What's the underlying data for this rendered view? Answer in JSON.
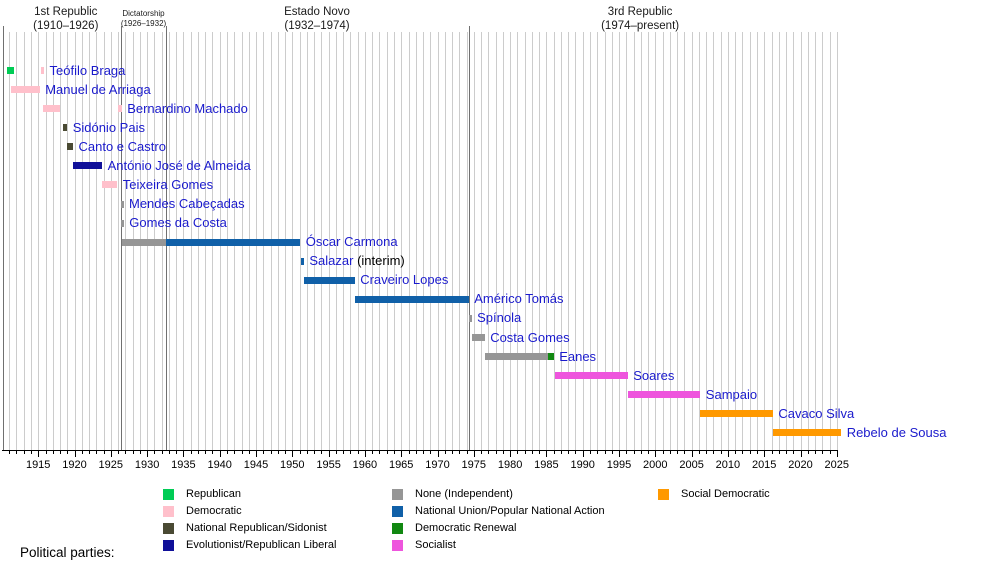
{
  "legend": {
    "title": "Political parties:",
    "columns": [
      [
        {
          "label": "Republican",
          "party": "republican"
        },
        {
          "label": "Democratic",
          "party": "democratic"
        },
        {
          "label": "National Republican/Sidonist",
          "party": "national_republican_sidonist"
        },
        {
          "label": "Evolutionist/Republican Liberal",
          "party": "evolutionist_republican_liberal"
        }
      ],
      [
        {
          "label": "None (Independent)",
          "party": "none_independent"
        },
        {
          "label": "National Union/Popular National Action",
          "party": "national_union"
        },
        {
          "label": "Democratic Renewal",
          "party": "democratic_renewal"
        },
        {
          "label": "Socialist",
          "party": "socialist"
        }
      ],
      [
        {
          "label": "Social Democratic",
          "party": "social_democratic"
        }
      ]
    ]
  },
  "colors": {
    "name_label": "#1A1ACC",
    "grid": "#CCCCCC",
    "period_line": "#707070",
    "axis": "#000000",
    "text": "#000000"
  },
  "chart_data": {
    "type": "timeline",
    "unit": "year",
    "x_axis": {
      "range": [
        1910,
        2026
      ],
      "minor_tick_interval": 1,
      "tick_years": [
        1915,
        1920,
        1925,
        1930,
        1935,
        1940,
        1945,
        1950,
        1955,
        1960,
        1965,
        1970,
        1975,
        1980,
        1985,
        1990,
        1995,
        2000,
        2005,
        2010,
        2015,
        2020,
        2025
      ]
    },
    "periods": [
      {
        "name": "1st Republic",
        "years_label": "(1910–1926)",
        "start": 1910.2,
        "end": 1926.45,
        "label_center_year": 1918.8,
        "small": false
      },
      {
        "name": "Dictatorship",
        "years_label": "(1926–1932)",
        "start": 1926.45,
        "end": 1932.6,
        "label_center_year": 1929.5,
        "small": true
      },
      {
        "name": "Estado Novo",
        "years_label": "(1932–1974)",
        "start": 1932.6,
        "end": 1974.3,
        "label_center_year": 1953.4,
        "small": false
      },
      {
        "name": "3rd Republic",
        "years_label": "(1974–present)",
        "start": 1974.3,
        "end": null,
        "label_center_year": 1997.9,
        "small": false
      }
    ],
    "party_colors": {
      "republican": "#00CC55",
      "democratic": "#FFC0CB",
      "national_republican_sidonist": "#4A4A33",
      "evolutionist_republican_liberal": "#101099",
      "none_independent": "#969696",
      "national_union": "#1060A8",
      "democratic_renewal": "#118811",
      "socialist": "#EE55DD",
      "social_democratic": "#FF9900"
    },
    "presidents": [
      {
        "name": "Teófilo Braga",
        "segments": [
          {
            "start": 1910.7,
            "end": 1911.6,
            "party": "republican"
          },
          {
            "start": 1915.35,
            "end": 1915.8,
            "party": "democratic"
          }
        ]
      },
      {
        "name": "Manuel de Arriaga",
        "segments": [
          {
            "start": 1911.2,
            "end": 1915.2,
            "party": "democratic"
          }
        ]
      },
      {
        "name": "Bernardino Machado",
        "segments": [
          {
            "start": 1915.6,
            "end": 1918.0,
            "party": "democratic"
          },
          {
            "start": 1926.0,
            "end": 1926.5,
            "party": "democratic"
          }
        ]
      },
      {
        "name": "Sidónio Pais",
        "segments": [
          {
            "start": 1918.4,
            "end": 1919.0,
            "party": "national_republican_sidonist"
          }
        ]
      },
      {
        "name": "Canto e Castro",
        "segments": [
          {
            "start": 1919.0,
            "end": 1919.8,
            "party": "national_republican_sidonist"
          }
        ]
      },
      {
        "name": "António José de Almeida",
        "segments": [
          {
            "start": 1919.8,
            "end": 1923.8,
            "party": "evolutionist_republican_liberal"
          }
        ]
      },
      {
        "name": "Teixeira Gomes",
        "segments": [
          {
            "start": 1923.8,
            "end": 1925.9,
            "party": "democratic"
          }
        ]
      },
      {
        "name": "Mendes Cabeçadas",
        "segments": [
          {
            "start": 1926.4,
            "end": 1926.6,
            "party": "none_independent"
          }
        ]
      },
      {
        "name": "Gomes da Costa",
        "segments": [
          {
            "start": 1926.45,
            "end": 1926.65,
            "party": "none_independent"
          }
        ]
      },
      {
        "name": "Óscar Carmona",
        "segments": [
          {
            "start": 1926.6,
            "end": 1932.6,
            "party": "none_independent"
          },
          {
            "start": 1932.6,
            "end": 1951.1,
            "party": "national_union"
          }
        ]
      },
      {
        "name": "Salazar",
        "suffix": " (interim)",
        "segments": [
          {
            "start": 1951.2,
            "end": 1951.6,
            "party": "national_union"
          }
        ]
      },
      {
        "name": "Craveiro Lopes",
        "segments": [
          {
            "start": 1951.6,
            "end": 1958.6,
            "party": "national_union"
          }
        ]
      },
      {
        "name": "Américo Tomás",
        "segments": [
          {
            "start": 1958.6,
            "end": 1974.3,
            "party": "national_union"
          }
        ]
      },
      {
        "name": "Spínola",
        "segments": [
          {
            "start": 1974.3,
            "end": 1974.7,
            "party": "none_independent"
          }
        ]
      },
      {
        "name": "Costa Gomes",
        "segments": [
          {
            "start": 1974.7,
            "end": 1976.5,
            "party": "none_independent"
          }
        ]
      },
      {
        "name": "Eanes",
        "segments": [
          {
            "start": 1976.5,
            "end": 1985.2,
            "party": "none_independent"
          },
          {
            "start": 1985.2,
            "end": 1986.0,
            "party": "democratic_renewal"
          }
        ]
      },
      {
        "name": "Soares",
        "segments": [
          {
            "start": 1986.2,
            "end": 1996.2,
            "party": "socialist"
          }
        ]
      },
      {
        "name": "Sampaio",
        "segments": [
          {
            "start": 1996.2,
            "end": 2006.2,
            "party": "socialist"
          }
        ]
      },
      {
        "name": "Cavaco Silva",
        "segments": [
          {
            "start": 2006.2,
            "end": 2016.2,
            "party": "social_democratic"
          }
        ]
      },
      {
        "name": "Rebelo de Sousa",
        "segments": [
          {
            "start": 2016.2,
            "end": 2025.6,
            "party": "social_democratic"
          }
        ]
      }
    ]
  }
}
